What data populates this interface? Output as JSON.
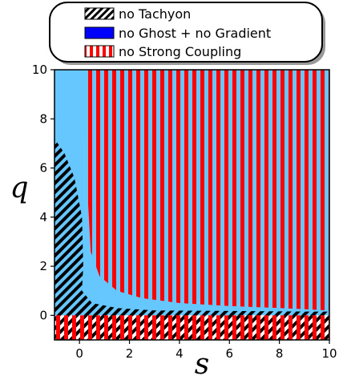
{
  "chart_data": {
    "type": "region",
    "xlabel": "s",
    "ylabel": "q",
    "xlim": [
      -1,
      10
    ],
    "ylim": [
      -1,
      10
    ],
    "x_ticks": [
      0,
      2,
      4,
      6,
      8,
      10
    ],
    "y_ticks": [
      0,
      2,
      4,
      6,
      8,
      10
    ],
    "x_tick_labels": [
      "0",
      "2",
      "4",
      "6",
      "8",
      "10"
    ],
    "y_tick_labels": [
      "0",
      "2",
      "4",
      "6",
      "8",
      "10"
    ],
    "legend_position": "top-center",
    "legend": [
      {
        "label": "no Tachyon",
        "pattern": "diagonal-hatch",
        "color": "#000000"
      },
      {
        "label": "no Ghost + no Gradient",
        "pattern": "solid",
        "color": "#0000ff"
      },
      {
        "label": "no Strong Coupling",
        "pattern": "vertical-stripes",
        "color": "#ff0000"
      }
    ],
    "regions": {
      "no_tachyon": {
        "description_points": [
          [
            -1,
            7.2
          ],
          [
            -0.6,
            6.6
          ],
          [
            -0.2,
            5.6
          ],
          [
            0.1,
            4.0
          ],
          [
            0.15,
            2.0
          ],
          [
            0.1,
            1.0
          ],
          [
            0.5,
            0.5
          ],
          [
            1.5,
            0.3
          ],
          [
            3.0,
            0.2
          ],
          [
            10,
            0.15
          ]
        ],
        "plus_band": [
          -1,
          0
        ]
      },
      "no_ghost_no_gradient": {
        "boundary_points": [
          [
            -1,
            10
          ],
          [
            0.1,
            10
          ],
          [
            0.2,
            5.0
          ],
          [
            0.3,
            3.0
          ],
          [
            0.5,
            2.0
          ],
          [
            1.0,
            1.4
          ],
          [
            2.0,
            0.9
          ],
          [
            4.0,
            0.55
          ],
          [
            6.0,
            0.45
          ],
          [
            8.0,
            0.35
          ],
          [
            10.0,
            0.25
          ]
        ]
      },
      "no_strong_coupling": {
        "boundary_points": [
          [
            0.3,
            10
          ],
          [
            0.32,
            5
          ],
          [
            0.45,
            2.6
          ],
          [
            0.8,
            1.6
          ],
          [
            1.5,
            1.0
          ],
          [
            2.5,
            0.7
          ],
          [
            4.0,
            0.5
          ],
          [
            6.0,
            0.38
          ],
          [
            8.0,
            0.3
          ],
          [
            10.0,
            0.2
          ]
        ],
        "plus_band": [
          -1,
          0
        ]
      }
    }
  }
}
